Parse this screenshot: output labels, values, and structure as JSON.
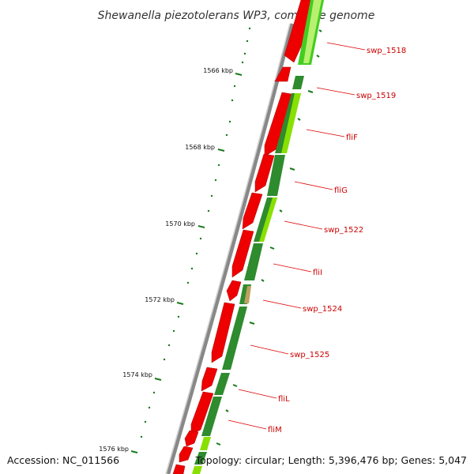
{
  "title": "Shewanella piezotolerans WP3, complete genome",
  "footer": {
    "accession": "Accession: NC_011566",
    "summary": "Topology: circular; Length: 5,396,476 bp; Genes: 5,047"
  },
  "scale": {
    "unit": "kbp",
    "tick_labels": [
      "1566 kbp",
      "1568 kbp",
      "1570 kbp",
      "1572 kbp",
      "1574 kbp",
      "1576 kbp"
    ]
  },
  "genes": [
    "swp_1518",
    "swp_1519",
    "fliF",
    "fliG",
    "swp_1522",
    "fliI",
    "swp_1524",
    "swp_1525",
    "fliL",
    "fliM"
  ],
  "colors": {
    "forward_cds": "#ee0000",
    "dark_green": "#2e8b2e",
    "light_green": "#88e000",
    "backbone": "#888888",
    "label": "#cc0000",
    "tick": "#1a7a1a"
  }
}
